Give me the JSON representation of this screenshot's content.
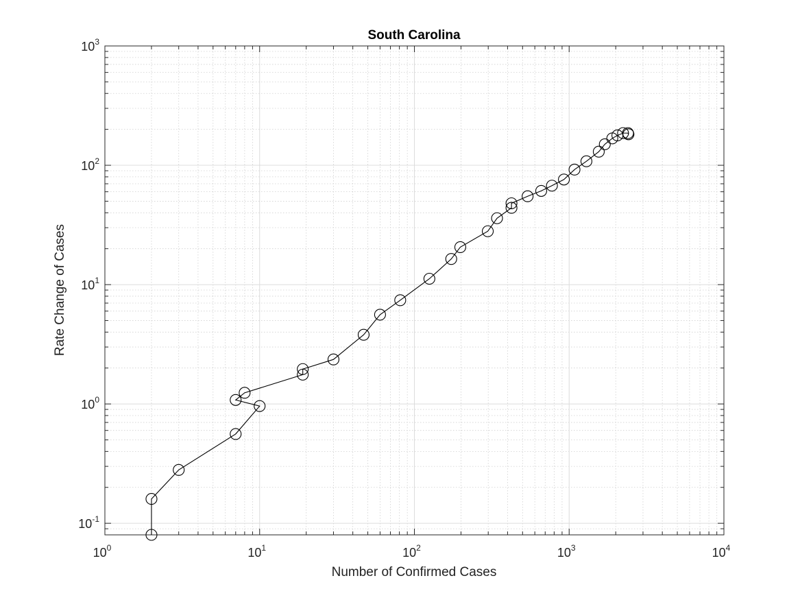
{
  "chart_data": {
    "type": "scatter",
    "title": "South Carolina",
    "xlabel": "Number of Confirmed Cases",
    "ylabel": "Rate Change of Cases",
    "xscale": "log",
    "yscale": "log",
    "xlim": [
      1,
      10000
    ],
    "ylim": [
      0.08,
      1000
    ],
    "grid": true,
    "minor_grid": true,
    "x_ticks": [
      {
        "base": "10",
        "exp": "0",
        "value": 1
      },
      {
        "base": "10",
        "exp": "1",
        "value": 10
      },
      {
        "base": "10",
        "exp": "2",
        "value": 100
      },
      {
        "base": "10",
        "exp": "3",
        "value": 1000
      },
      {
        "base": "10",
        "exp": "4",
        "value": 10000
      }
    ],
    "y_ticks": [
      {
        "base": "10",
        "exp": "-1",
        "value": 0.1
      },
      {
        "base": "10",
        "exp": "0",
        "value": 1
      },
      {
        "base": "10",
        "exp": "1",
        "value": 10
      },
      {
        "base": "10",
        "exp": "2",
        "value": 100
      },
      {
        "base": "10",
        "exp": "3",
        "value": 1000
      }
    ],
    "series": [
      {
        "marker": "circle",
        "line_color": "#000000",
        "points": [
          [
            2,
            0.08
          ],
          [
            2,
            0.16
          ],
          [
            3,
            0.28
          ],
          [
            7,
            0.56
          ],
          [
            10,
            0.96
          ],
          [
            7,
            1.08
          ],
          [
            8,
            1.24
          ],
          [
            19,
            1.76
          ],
          [
            19,
            1.96
          ],
          [
            30,
            2.36
          ],
          [
            47,
            3.8
          ],
          [
            60,
            5.6
          ],
          [
            81,
            7.4
          ],
          [
            125,
            11.2
          ],
          [
            173,
            16.4
          ],
          [
            198,
            20.6
          ],
          [
            298,
            28
          ],
          [
            342,
            36
          ],
          [
            424,
            44
          ],
          [
            424,
            48
          ],
          [
            539,
            55
          ],
          [
            660,
            61
          ],
          [
            774,
            67.5
          ],
          [
            925,
            76
          ],
          [
            1083,
            92
          ],
          [
            1293,
            108
          ],
          [
            1554,
            130
          ],
          [
            1700,
            150
          ],
          [
            1900,
            168
          ],
          [
            2050,
            178
          ],
          [
            2230,
            186
          ],
          [
            2400,
            186
          ],
          [
            2417,
            182
          ]
        ]
      }
    ]
  }
}
